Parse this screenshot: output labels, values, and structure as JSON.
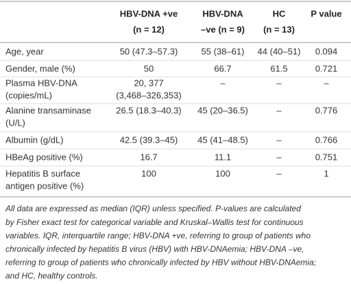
{
  "table": {
    "header": [
      [
        "HBV-DNA +ve",
        "(n = 12)"
      ],
      [
        "HBV-DNA",
        "–ve (n = 9)"
      ],
      [
        "HC",
        "(n = 13)"
      ],
      [
        "P value"
      ]
    ],
    "rows": [
      [
        [
          "Age, year"
        ],
        [
          "50 (47.3–57.3)"
        ],
        [
          "55 (38–61)"
        ],
        [
          "44 (40–51)"
        ],
        [
          "0.094"
        ]
      ],
      [
        [
          "Gender, male (%)"
        ],
        [
          "50"
        ],
        [
          "66.7"
        ],
        [
          "61.5"
        ],
        [
          "0.721"
        ]
      ],
      [
        [
          "Plasma HBV-DNA",
          "(copies/mL)"
        ],
        [
          "20, 377",
          "(3,468–326,353)"
        ],
        [
          "–"
        ],
        [
          "–"
        ],
        [
          "–"
        ]
      ],
      [
        [
          "Alanine transaminase",
          "(U/L)"
        ],
        [
          "26.5 (18.3–40.3)"
        ],
        [
          "45 (20–36.5)"
        ],
        [
          "–"
        ],
        [
          "0.776"
        ]
      ],
      [
        [
          "Albumin (g/dL)"
        ],
        [
          "42.5 (39.3–45)"
        ],
        [
          "45 (41–48.5)"
        ],
        [
          "–"
        ],
        [
          "0.766"
        ]
      ],
      [
        [
          "HBeAg positive (%)"
        ],
        [
          "16.7"
        ],
        [
          "11.1"
        ],
        [
          "–"
        ],
        [
          "0.751"
        ]
      ],
      [
        [
          "Hepatitis B surface",
          "antigen positive (%)"
        ],
        [
          "100"
        ],
        [
          "100"
        ],
        [
          "–"
        ],
        [
          "1"
        ]
      ]
    ],
    "footnote": [
      "All data are expressed as median (IQR) unless specified. P-values are calculated",
      "by Fisher exact test for categorical variable and Kruskal–Wallis test for continuous",
      "variables. IQR, interquartile range; HBV-DNA +ve, referring to group of patients who",
      "chronically infected by hepatitis B virus (HBV) with HBV-DNAemia; HBV-DNA –ve,",
      "referring to group of patients who chronically infected by HBV without HBV-DNAemia;",
      "and HC, healthy controls."
    ]
  }
}
